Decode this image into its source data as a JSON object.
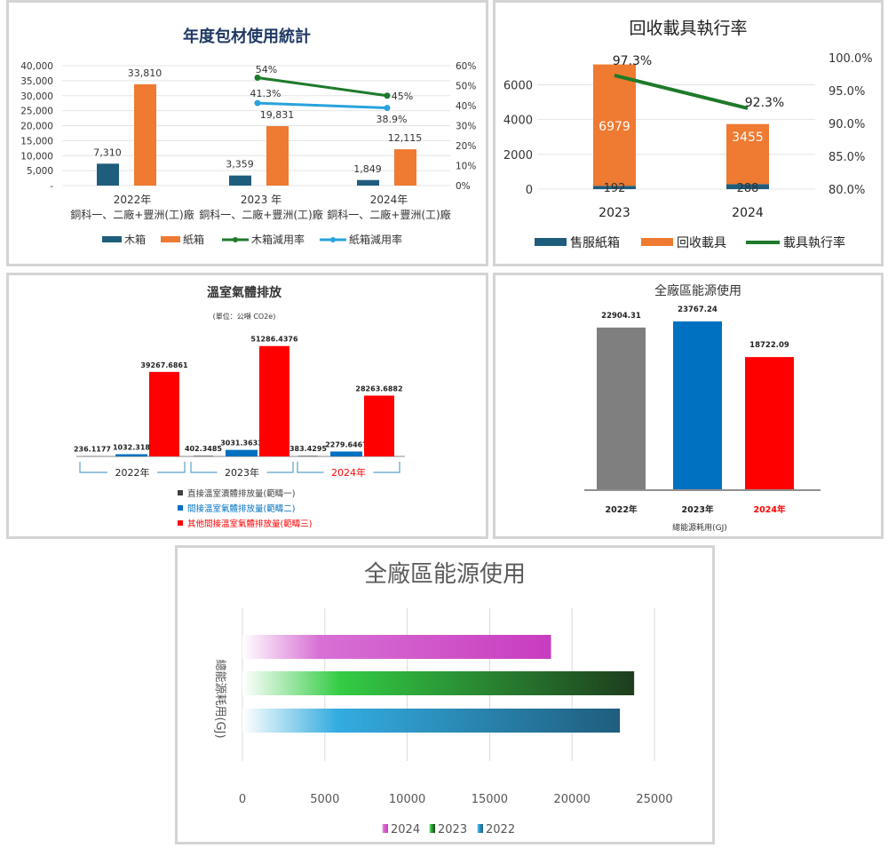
{
  "chart_data": [
    {
      "type": "bar",
      "title": "年度包材使用統計",
      "categories": [
        "2022年\n銅科一、二廠+豐洲(工)廠",
        "2023 年\n銅科一、二廠+豐洲(工)廠",
        "2024年\n銅科一、二廠+豐洲(工)廠"
      ],
      "category_labels": [
        [
          "2022年",
          "銅科一、二廠+豐洲(工)廠"
        ],
        [
          "2023 年",
          "銅科一、二廠+豐洲(工)廠"
        ],
        [
          "2024年",
          "銅科一、二廠+豐洲(工)廠"
        ]
      ],
      "series": [
        {
          "name": "木箱",
          "kind": "bar",
          "values": [
            7310,
            3359,
            1849
          ],
          "labels": [
            "7,310",
            "3,359",
            "1,849"
          ],
          "color": "#1f5d7d"
        },
        {
          "name": "紙箱",
          "kind": "bar",
          "values": [
            33810,
            19831,
            12115
          ],
          "labels": [
            "33,810",
            "19,831",
            "12,115"
          ],
          "color": "#ef7a31"
        },
        {
          "name": "木箱減用率",
          "kind": "line",
          "axis": "right",
          "values": [
            null,
            54,
            45
          ],
          "labels": [
            "",
            "54%",
            "45%"
          ],
          "color": "#1e7a2b"
        },
        {
          "name": "紙箱減用率",
          "kind": "line",
          "axis": "right",
          "values": [
            null,
            41.3,
            38.9
          ],
          "labels": [
            "",
            "41.3%",
            "38.9%"
          ],
          "color": "#29a3dc"
        }
      ],
      "y_ticks": [
        "40,000",
        "35,000",
        "30,000",
        "25,000",
        "20,000",
        "15,000",
        "10,000",
        "5,000",
        "-"
      ],
      "y2_ticks": [
        "60%",
        "50%",
        "40%",
        "30%",
        "20%",
        "10%",
        "0%"
      ],
      "ylim": [
        0,
        40000
      ],
      "y2lim": [
        0,
        60
      ],
      "grid": true,
      "legend": "bottom"
    },
    {
      "type": "bar",
      "title": "回收載具執行率",
      "categories": [
        "2023",
        "2024"
      ],
      "series": [
        {
          "name": "售服紙箱",
          "kind": "stacked-bar",
          "values": [
            192,
            288
          ],
          "labels": [
            "192",
            "288"
          ],
          "color": "#1f5d7d"
        },
        {
          "name": "回收載具",
          "kind": "stacked-bar",
          "values": [
            6979,
            3455
          ],
          "labels": [
            "6979",
            "3455"
          ],
          "color": "#ef7a31"
        },
        {
          "name": "載具執行率",
          "kind": "line",
          "axis": "right",
          "values": [
            97.3,
            92.3
          ],
          "labels": [
            "97.3%",
            "92.3%"
          ],
          "color": "#1e7a2b"
        }
      ],
      "y_ticks": [
        "6000",
        "4000",
        "2000",
        "0"
      ],
      "y2_ticks": [
        "100.0%",
        "95.0%",
        "90.0%",
        "85.0%",
        "80.0%"
      ],
      "ylim": [
        0,
        7200
      ],
      "y2lim": [
        80,
        100
      ],
      "grid": true,
      "legend": "bottom"
    },
    {
      "type": "bar",
      "title": "溫室氣體排放",
      "subtitle": "(單位：公噸 CO2e)",
      "categories": [
        "2022年",
        "2023年",
        "2024年"
      ],
      "category_colors": [
        "#222222",
        "#222222",
        "#ff0000"
      ],
      "series": [
        {
          "name": "直接溫室瀆體排放量(範疇一)",
          "values": [
            236.1177,
            402.3485,
            383.4295
          ],
          "labels": [
            "236.1177",
            "402.3485",
            "383.4295"
          ],
          "color": "#7f7f7f",
          "legend_color": "#404040"
        },
        {
          "name": "間接溫室氣體排放量(範疇二)",
          "values": [
            1032.318,
            3031.3633,
            2279.6467
          ],
          "labels": [
            "1032.318",
            "3031.3633",
            "2279.6467"
          ],
          "color": "#0070c0",
          "legend_color": "#0070c0"
        },
        {
          "name": "其他間接溫室氣體排放量(範疇三)",
          "values": [
            39267.6861,
            51286.4376,
            28263.6882
          ],
          "labels": [
            "39267.6861",
            "51286.4376",
            "28263.6882"
          ],
          "color": "#ff0000",
          "legend_color": "#ff0000"
        }
      ],
      "ylim": [
        0,
        52000
      ],
      "grid": false,
      "legend": "bottom"
    },
    {
      "type": "bar",
      "title": "全廠區能源使用",
      "xlabel": "總能源耗用(GJ)",
      "categories": [
        "2022年",
        "2023年",
        "2024年"
      ],
      "category_colors": [
        "#222222",
        "#222222",
        "#ff0000"
      ],
      "values": [
        22904.31,
        23767.24,
        18722.09
      ],
      "labels": [
        "22904.31",
        "23767.24",
        "18722.09"
      ],
      "colors": [
        "#7f7f7f",
        "#0070c0",
        "#ff0000"
      ],
      "ylim": [
        0,
        25000
      ],
      "grid": false,
      "legend": "none"
    },
    {
      "type": "bar",
      "orientation": "horizontal",
      "title": "全廠區能源使用",
      "ylabel": "總能源耗用(GJ)",
      "categories": [
        "2022",
        "2023",
        "2024"
      ],
      "values": [
        22904.31,
        23767.24,
        18722.09
      ],
      "colors": [
        "#1f5d7d",
        "#1e3d1e",
        "#c83cbf"
      ],
      "gradient_mid": [
        "#33ace0",
        "#33cc44",
        "#d870d4"
      ],
      "x_ticks": [
        0,
        5000,
        10000,
        15000,
        20000,
        25000
      ],
      "xlim": [
        0,
        25000
      ],
      "grid": true,
      "legend": "bottom",
      "legend_order": [
        "2024",
        "2023",
        "2022"
      ]
    }
  ]
}
